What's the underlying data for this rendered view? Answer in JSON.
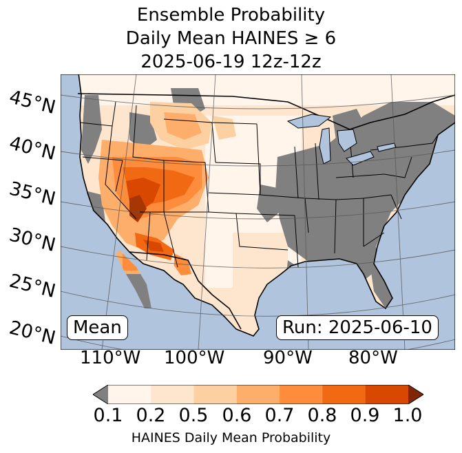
{
  "title": {
    "line1": "Ensemble Probability",
    "line2": "Daily Mean HAINES ≥ 6",
    "line3": "2025-06-19 12z-12z"
  },
  "map": {
    "latitude_labels": [
      "45°N",
      "40°N",
      "35°N",
      "30°N",
      "25°N",
      "20°N"
    ],
    "longitude_labels": [
      "110°W",
      "100°W",
      "90°W",
      "80°W"
    ],
    "stat_box": "Mean",
    "run_box": "Run: 2025-06-10",
    "region": "Contiguous United States",
    "colors": {
      "ocean": "#b0c4de",
      "masked_land": "#808080",
      "gridline": "#555555",
      "border": "#000000"
    },
    "hotspots": [
      {
        "name": "Southwest / Nevada-Arizona",
        "level": 1.0
      },
      {
        "name": "Colorado Plateau / Four Corners",
        "level": 0.8
      },
      {
        "name": "Northern Rockies",
        "level": 0.6
      },
      {
        "name": "Great Plains",
        "level": 0.3
      },
      {
        "name": "Southeast / Ohio Valley",
        "level": 0.0
      }
    ]
  },
  "colorbar": {
    "tick_labels": [
      "0.1",
      "0.2",
      "0.5",
      "0.6",
      "0.7",
      "0.8",
      "0.9",
      "1.0"
    ],
    "label": "HAINES Daily Mean Probability",
    "under_color": "#808080",
    "over_color": "#7f2704",
    "bin_colors": [
      "#fff5eb",
      "#fee6ce",
      "#fdd0a2",
      "#fdae6b",
      "#fd8d3c",
      "#f16913",
      "#d94801"
    ]
  }
}
